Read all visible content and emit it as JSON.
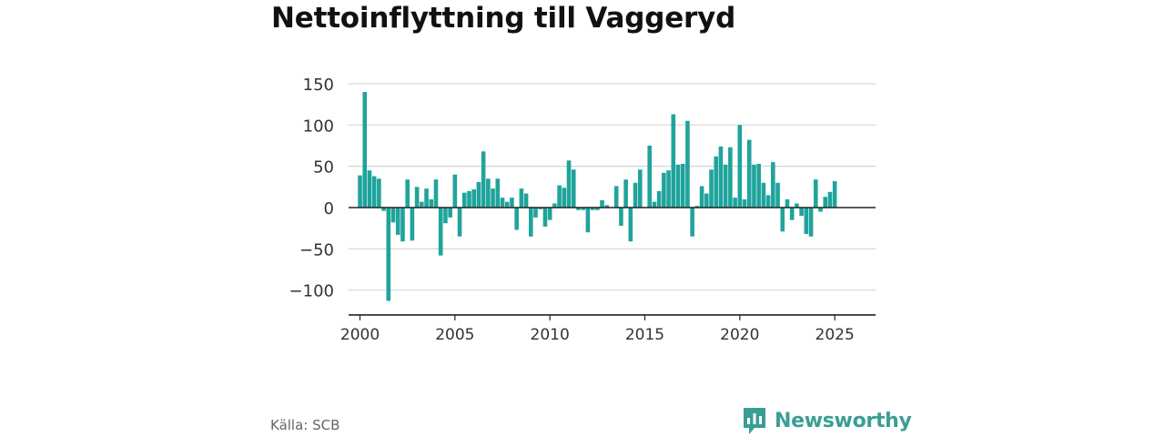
{
  "header": {
    "title": "Nettoinflyttning till Vaggeryd"
  },
  "footer": {
    "source": "Källa: SCB",
    "brand": "Newsworthy"
  },
  "colors": {
    "bar": "#1fa49c",
    "grid": "#d6d6d6",
    "zero": "#222222",
    "brand": "#3a9e96"
  },
  "chart_data": {
    "type": "bar",
    "title": "Nettoinflyttning till Vaggeryd",
    "xlabel": "",
    "ylabel": "",
    "ylim": [
      -130,
      150
    ],
    "xlim": [
      1999.4,
      2027.15
    ],
    "yticks": [
      150,
      100,
      50,
      0,
      -50,
      -100
    ],
    "ytick_labels": [
      "150",
      "100",
      "50",
      "0",
      "−50",
      "−100"
    ],
    "xticks": [
      2000,
      2005,
      2010,
      2015,
      2020,
      2025
    ],
    "xtick_labels": [
      "2000",
      "2005",
      "2010",
      "2015",
      "2020",
      "2025"
    ],
    "grid": true,
    "series": [
      {
        "x": [
          2000.0,
          2000.25,
          2000.5,
          2000.75,
          2001.0,
          2001.25,
          2001.5,
          2001.75,
          2002.0,
          2002.25,
          2002.5,
          2002.75,
          2003.0,
          2003.25,
          2003.5,
          2003.75,
          2004.0,
          2004.25,
          2004.5,
          2004.75,
          2005.0,
          2005.25,
          2005.5,
          2005.75,
          2006.0,
          2006.25,
          2006.5,
          2006.75,
          2007.0,
          2007.25,
          2007.5,
          2007.75,
          2008.0,
          2008.25,
          2008.5,
          2008.75,
          2009.0,
          2009.25,
          2009.5,
          2009.75,
          2010.0,
          2010.25,
          2010.5,
          2010.75,
          2011.0,
          2011.25,
          2011.5,
          2011.75,
          2012.0,
          2012.25,
          2012.5,
          2012.75,
          2013.0,
          2013.25,
          2013.5,
          2013.75,
          2014.0,
          2014.25,
          2014.5,
          2014.75,
          2015.0,
          2015.25,
          2015.5,
          2015.75,
          2016.0,
          2016.25,
          2016.5,
          2016.75,
          2017.0,
          2017.25,
          2017.5,
          2017.75,
          2018.0,
          2018.25,
          2018.5,
          2018.75,
          2019.0,
          2019.25,
          2019.5,
          2019.75,
          2020.0,
          2020.25,
          2020.5,
          2020.75,
          2021.0,
          2021.25,
          2021.5,
          2021.75,
          2022.0,
          2022.25,
          2022.5,
          2022.75,
          2023.0,
          2023.25,
          2023.5,
          2023.75,
          2024.0,
          2024.25,
          2024.5,
          2024.75,
          2025.0,
          2025.25
        ],
        "values": [
          39,
          140,
          45,
          38,
          35,
          -4,
          -113,
          -18,
          -33,
          -41,
          34,
          -40,
          25,
          7,
          23,
          10,
          34,
          -58,
          -19,
          -12,
          40,
          -35,
          18,
          20,
          22,
          31,
          68,
          35,
          23,
          35,
          12,
          7,
          12,
          -27,
          23,
          17,
          -35,
          -12,
          -2,
          -23,
          -15,
          5,
          27,
          24,
          57,
          46,
          -3,
          -3,
          -30,
          -3,
          -3,
          9,
          3,
          0,
          26,
          -22,
          34,
          -41,
          30,
          46,
          0,
          75,
          7,
          20,
          42,
          45,
          113,
          52,
          53,
          105,
          -35,
          2,
          26,
          17,
          46,
          62,
          74,
          52,
          73,
          12,
          100,
          10,
          82,
          52,
          53,
          30,
          15,
          55,
          30,
          -29,
          10,
          -15,
          5,
          -10,
          -32,
          -35,
          34,
          -5,
          13,
          19,
          32,
          0
        ]
      }
    ]
  }
}
